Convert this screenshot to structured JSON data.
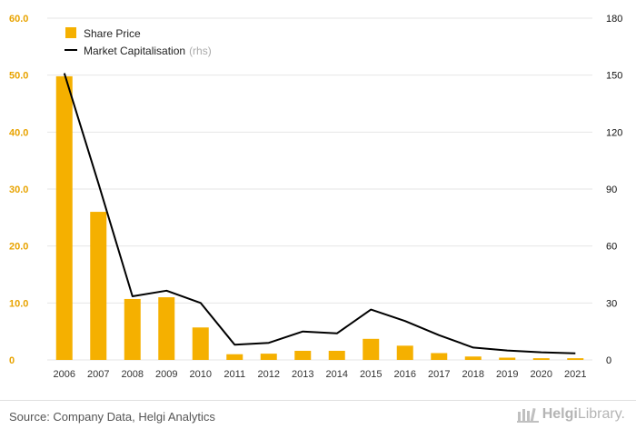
{
  "chart_data": {
    "type": "bar",
    "categories": [
      "2006",
      "2007",
      "2008",
      "2009",
      "2010",
      "2011",
      "2012",
      "2013",
      "2014",
      "2015",
      "2016",
      "2017",
      "2018",
      "2019",
      "2020",
      "2021"
    ],
    "series": [
      {
        "name": "Share Price",
        "type": "bar",
        "axis": "left",
        "values": [
          49.8,
          26.0,
          10.7,
          11.0,
          5.7,
          1.0,
          1.1,
          1.6,
          1.6,
          3.7,
          2.5,
          1.2,
          0.6,
          0.4,
          0.3,
          0.3
        ],
        "color": "#F5B000"
      },
      {
        "name": "Market Capitalisation",
        "name_suffix": "(rhs)",
        "type": "line",
        "axis": "right",
        "values": [
          151,
          93,
          33.5,
          36.5,
          30,
          8,
          9,
          15,
          14,
          26.5,
          20.5,
          13,
          6.5,
          5,
          4,
          3.5
        ],
        "color": "#000000"
      }
    ],
    "ylim_left": [
      0,
      60
    ],
    "yticks_left": [
      "0",
      "10.0",
      "20.0",
      "30.0",
      "40.0",
      "50.0",
      "60.0"
    ],
    "ylim_right": [
      0,
      180
    ],
    "yticks_right": [
      "0",
      "30",
      "60",
      "90",
      "120",
      "150",
      "180"
    ],
    "grid": true,
    "legend_position": "top-left"
  },
  "footer": {
    "source": "Source: Company Data, Helgi Analytics",
    "logo_part1": "Helgi",
    "logo_part2": "Library."
  }
}
